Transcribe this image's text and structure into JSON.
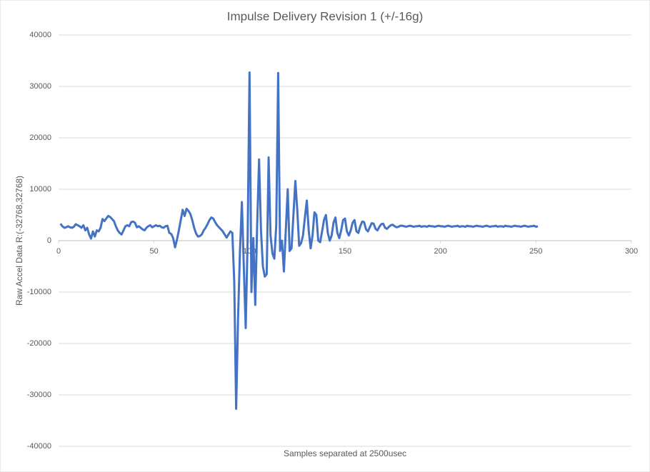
{
  "chart_data": {
    "type": "line",
    "title": "Impulse Delivery Revision 1 (+/-16g)",
    "x_label": "Samples separated at 2500usec",
    "y_label": "Raw Accel Data R:(-32768,32768)",
    "xlim": [
      0,
      300
    ],
    "xticks": [
      0,
      50,
      100,
      150,
      200,
      250,
      300
    ],
    "ylim": [
      -40000,
      40000
    ],
    "yticks": [
      -40000,
      -30000,
      -20000,
      -10000,
      0,
      10000,
      20000,
      30000,
      40000
    ],
    "grid": true,
    "x": [
      1,
      2,
      3,
      4,
      5,
      6,
      7,
      8,
      9,
      10,
      11,
      12,
      13,
      14,
      15,
      16,
      17,
      18,
      19,
      20,
      21,
      22,
      23,
      24,
      25,
      26,
      27,
      28,
      29,
      30,
      31,
      32,
      33,
      34,
      35,
      36,
      37,
      38,
      39,
      40,
      41,
      42,
      43,
      44,
      45,
      46,
      47,
      48,
      49,
      50,
      51,
      52,
      53,
      54,
      55,
      56,
      57,
      58,
      59,
      60,
      61,
      62,
      63,
      64,
      65,
      66,
      67,
      68,
      69,
      70,
      71,
      72,
      73,
      74,
      75,
      76,
      77,
      78,
      79,
      80,
      81,
      82,
      83,
      84,
      85,
      86,
      87,
      88,
      89,
      90,
      91,
      92,
      93,
      94,
      95,
      96,
      97,
      98,
      99,
      100,
      101,
      102,
      103,
      104,
      105,
      106,
      107,
      108,
      109,
      110,
      111,
      112,
      113,
      114,
      115,
      116,
      117,
      118,
      119,
      120,
      121,
      122,
      123,
      124,
      125,
      126,
      127,
      128,
      129,
      130,
      131,
      132,
      133,
      134,
      135,
      136,
      137,
      138,
      139,
      140,
      141,
      142,
      143,
      144,
      145,
      146,
      147,
      148,
      149,
      150,
      151,
      152,
      153,
      154,
      155,
      156,
      157,
      158,
      159,
      160,
      161,
      162,
      163,
      164,
      165,
      166,
      167,
      168,
      169,
      170,
      171,
      172,
      173,
      174,
      175,
      176,
      177,
      178,
      179,
      180,
      181,
      182,
      183,
      184,
      185,
      186,
      187,
      188,
      189,
      190,
      191,
      192,
      193,
      194,
      195,
      196,
      197,
      198,
      199,
      200,
      201,
      202,
      203,
      204,
      205,
      206,
      207,
      208,
      209,
      210,
      211,
      212,
      213,
      214,
      215,
      216,
      217,
      218,
      219,
      220,
      221,
      222,
      223,
      224,
      225,
      226,
      227,
      228,
      229,
      230,
      231,
      232,
      233,
      234,
      235,
      236,
      237,
      238,
      239,
      240,
      241,
      242,
      243,
      244,
      245,
      246,
      247,
      248,
      249,
      250,
      251
    ],
    "series": [
      {
        "color": "#4472c4",
        "values": [
          3300,
          2800,
          2500,
          2600,
          2800,
          2600,
          2500,
          2700,
          3200,
          3000,
          2800,
          2500,
          3000,
          2000,
          2500,
          1200,
          400,
          1800,
          800,
          2000,
          1800,
          2500,
          4200,
          3800,
          4300,
          4800,
          4600,
          4200,
          3800,
          2800,
          2000,
          1500,
          1200,
          2000,
          2800,
          3000,
          2800,
          3600,
          3700,
          3500,
          2600,
          2800,
          2500,
          2200,
          2000,
          2500,
          2800,
          3000,
          2600,
          2800,
          3000,
          2800,
          2900,
          2600,
          2500,
          2800,
          2900,
          1500,
          1300,
          500,
          -1300,
          200,
          2000,
          4000,
          6000,
          4800,
          6200,
          5800,
          5200,
          4000,
          2500,
          1400,
          800,
          900,
          1200,
          2000,
          2500,
          3200,
          4000,
          4500,
          4300,
          3600,
          3000,
          2600,
          2200,
          1800,
          1200,
          600,
          1200,
          1800,
          1500,
          -8000,
          -32700,
          -15000,
          -2000,
          7500,
          -5000,
          -17000,
          0,
          32700,
          -10000,
          500,
          -12500,
          3000,
          15800,
          2000,
          -5000,
          -7000,
          -6500,
          16200,
          1000,
          -2500,
          -3500,
          3000,
          32600,
          -2000,
          0,
          -6000,
          2000,
          10000,
          -2000,
          -1500,
          5000,
          11600,
          6000,
          -1000,
          -500,
          1000,
          4500,
          7800,
          2000,
          -1500,
          1000,
          5500,
          5000,
          0,
          -300,
          1800,
          4000,
          5000,
          1500,
          0,
          1000,
          3500,
          4500,
          1500,
          500,
          2000,
          4000,
          4300,
          1800,
          1000,
          2000,
          3500,
          4000,
          1800,
          1500,
          2800,
          3700,
          3600,
          2200,
          1800,
          2600,
          3400,
          3300,
          2300,
          2000,
          2700,
          3200,
          3300,
          2500,
          2300,
          2700,
          3000,
          3100,
          2800,
          2600,
          2700,
          2900,
          2900,
          2800,
          2700,
          2800,
          2900,
          2800,
          2700,
          2800,
          2800,
          2900,
          2700,
          2800,
          2800,
          2700,
          2900,
          2800,
          2800,
          2700,
          2800,
          2900,
          2800,
          2800,
          2700,
          2800,
          2900,
          2800,
          2700,
          2800,
          2800,
          2900,
          2700,
          2800,
          2800,
          2700,
          2900,
          2800,
          2800,
          2700,
          2800,
          2900,
          2800,
          2800,
          2700,
          2800,
          2900,
          2800,
          2700,
          2800,
          2800,
          2900,
          2700,
          2800,
          2800,
          2700,
          2900,
          2800,
          2800,
          2700,
          2800,
          2900,
          2800,
          2800,
          2700,
          2800,
          2900,
          2800,
          2700,
          2800,
          2800,
          2900,
          2700,
          2800
        ]
      }
    ]
  }
}
